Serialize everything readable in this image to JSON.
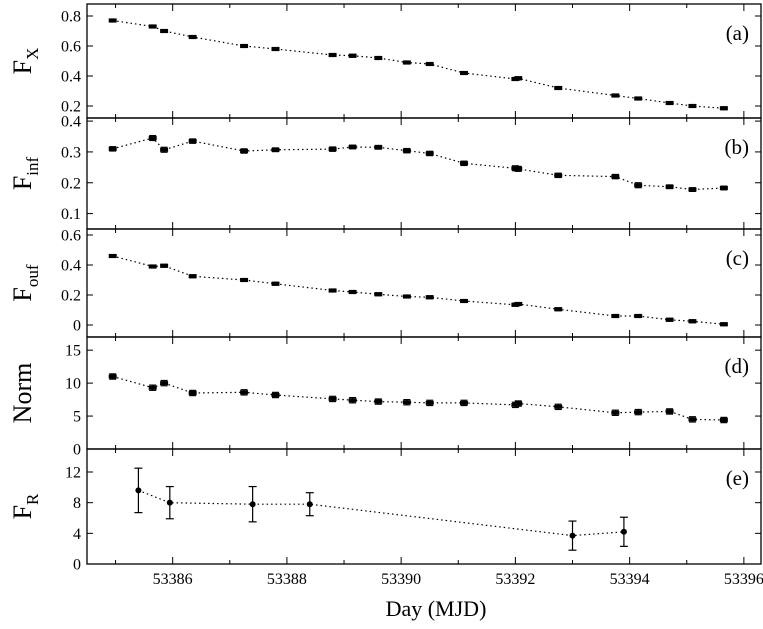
{
  "chart_data": {
    "type": "line",
    "xlabel": "Day (MJD)",
    "xlim": [
      53384.5,
      53396.3
    ],
    "x_ticks": [
      "53386",
      "53388",
      "53390",
      "53392",
      "53394",
      "53396"
    ],
    "panels": [
      {
        "id": "a",
        "label": "(a)",
        "ylabel_main": "F",
        "ylabel_sub": "X",
        "ylim": [
          0.12,
          0.88
        ],
        "y_ticks": [
          "0.2",
          "0.4",
          "0.6",
          "0.8"
        ],
        "x": [
          53384.95,
          53385.65,
          53385.85,
          53386.35,
          53387.25,
          53387.8,
          53388.8,
          53389.15,
          53389.6,
          53390.1,
          53390.5,
          53391.1,
          53392.0,
          53392.05,
          53392.75,
          53393.75,
          53394.15,
          53394.7,
          53395.1,
          53395.65
        ],
        "y": [
          0.77,
          0.73,
          0.7,
          0.66,
          0.6,
          0.58,
          0.54,
          0.535,
          0.52,
          0.49,
          0.48,
          0.42,
          0.38,
          0.385,
          0.32,
          0.27,
          0.25,
          0.22,
          0.2,
          0.185
        ],
        "err": [
          0.01,
          0.01,
          0.01,
          0.01,
          0.01,
          0.01,
          0.01,
          0.01,
          0.01,
          0.01,
          0.01,
          0.01,
          0.01,
          0.01,
          0.01,
          0.01,
          0.01,
          0.01,
          0.01,
          0.01
        ]
      },
      {
        "id": "b",
        "label": "(b)",
        "ylabel_main": "F",
        "ylabel_sub": "inf",
        "ylim": [
          0.05,
          0.41
        ],
        "y_ticks": [
          "0.1",
          "0.2",
          "0.3",
          "0.4"
        ],
        "x": [
          53384.95,
          53385.65,
          53385.85,
          53386.35,
          53387.25,
          53387.8,
          53388.8,
          53389.15,
          53389.6,
          53390.1,
          53390.5,
          53391.1,
          53392.0,
          53392.05,
          53392.75,
          53393.75,
          53394.15,
          53394.7,
          53395.1,
          53395.65
        ],
        "y": [
          0.31,
          0.345,
          0.307,
          0.335,
          0.303,
          0.307,
          0.309,
          0.316,
          0.315,
          0.304,
          0.295,
          0.263,
          0.247,
          0.245,
          0.224,
          0.22,
          0.192,
          0.187,
          0.178,
          0.183
        ],
        "err": [
          0.007,
          0.008,
          0.008,
          0.007,
          0.007,
          0.006,
          0.007,
          0.006,
          0.006,
          0.007,
          0.007,
          0.007,
          0.008,
          0.008,
          0.007,
          0.007,
          0.008,
          0.006,
          0.006,
          0.006
        ]
      },
      {
        "id": "c",
        "label": "(c)",
        "ylabel_main": "F",
        "ylabel_sub": "ouf",
        "ylim": [
          -0.08,
          0.64
        ],
        "y_ticks": [
          "0",
          "0.2",
          "0.4",
          "0.6"
        ],
        "x": [
          53384.95,
          53385.65,
          53385.85,
          53386.35,
          53387.25,
          53387.8,
          53388.8,
          53389.15,
          53389.6,
          53390.1,
          53390.5,
          53391.1,
          53392.0,
          53392.05,
          53392.75,
          53393.75,
          53394.15,
          53394.7,
          53395.1,
          53395.65
        ],
        "y": [
          0.46,
          0.39,
          0.395,
          0.325,
          0.3,
          0.275,
          0.23,
          0.22,
          0.205,
          0.19,
          0.185,
          0.16,
          0.135,
          0.14,
          0.105,
          0.06,
          0.06,
          0.035,
          0.025,
          0.005
        ],
        "err": [
          0.01,
          0.01,
          0.01,
          0.01,
          0.01,
          0.01,
          0.01,
          0.01,
          0.01,
          0.01,
          0.01,
          0.01,
          0.01,
          0.01,
          0.01,
          0.01,
          0.01,
          0.01,
          0.01,
          0.01
        ]
      },
      {
        "id": "d",
        "label": "(d)",
        "ylabel_main": "Norm",
        "ylabel_sub": "",
        "ylim": [
          0,
          17
        ],
        "y_ticks": [
          "0",
          "5",
          "10",
          "15"
        ],
        "x": [
          53384.95,
          53385.65,
          53385.85,
          53386.35,
          53387.25,
          53387.8,
          53388.8,
          53389.15,
          53389.6,
          53390.1,
          53390.5,
          53391.1,
          53392.0,
          53392.05,
          53392.75,
          53393.75,
          53394.15,
          53394.7,
          53395.1,
          53395.65
        ],
        "y": [
          11.0,
          9.3,
          10.0,
          8.5,
          8.6,
          8.2,
          7.6,
          7.4,
          7.2,
          7.1,
          7.0,
          7.0,
          6.7,
          6.9,
          6.4,
          5.5,
          5.6,
          5.7,
          4.5,
          4.4
        ],
        "err": [
          0.4,
          0.4,
          0.4,
          0.4,
          0.4,
          0.4,
          0.4,
          0.4,
          0.4,
          0.4,
          0.4,
          0.4,
          0.4,
          0.4,
          0.4,
          0.4,
          0.4,
          0.4,
          0.4,
          0.4
        ]
      },
      {
        "id": "e",
        "label": "(e)",
        "ylabel_main": "F",
        "ylabel_sub": "R",
        "ylim": [
          0,
          15
        ],
        "y_ticks": [
          "0",
          "4",
          "8",
          "12"
        ],
        "x": [
          53385.4,
          53385.95,
          53387.4,
          53388.4,
          53393.0,
          53393.9
        ],
        "y": [
          9.6,
          8.0,
          7.8,
          7.8,
          3.7,
          4.2
        ],
        "err": [
          2.9,
          2.1,
          2.3,
          1.5,
          1.9,
          1.9
        ]
      }
    ]
  }
}
